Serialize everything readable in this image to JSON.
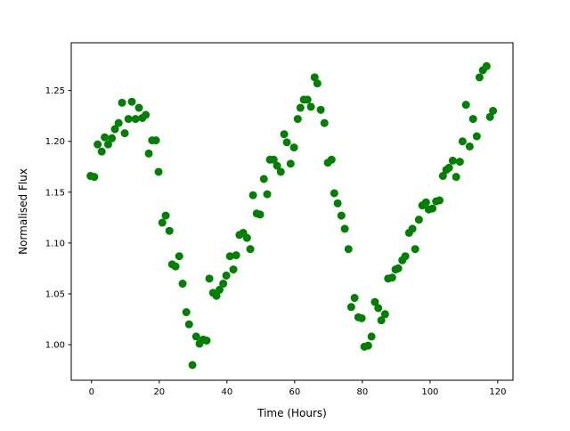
{
  "chart_data": {
    "type": "scatter",
    "title": "",
    "xlabel": "Time (Hours)",
    "ylabel": "Normalised Flux",
    "xlim": [
      -6,
      124.5
    ],
    "ylim": [
      0.965,
      1.297
    ],
    "xticks": [
      0,
      20,
      40,
      60,
      80,
      100,
      120
    ],
    "xtick_labels": [
      "0",
      "20",
      "40",
      "60",
      "80",
      "100",
      "120"
    ],
    "yticks": [
      1.0,
      1.05,
      1.1,
      1.15,
      1.2,
      1.25
    ],
    "ytick_labels": [
      "1.00",
      "1.05",
      "1.10",
      "1.15",
      "1.20",
      "1.25"
    ],
    "grid": false,
    "color": "#008000",
    "x": [
      -0.3,
      0.8,
      1.8,
      3.0,
      3.9,
      4.9,
      6.0,
      6.9,
      8.0,
      9.0,
      9.8,
      10.9,
      11.9,
      13.0,
      14.0,
      15.0,
      16.0,
      16.9,
      17.9,
      19.0,
      19.8,
      20.9,
      21.9,
      23.0,
      23.8,
      24.8,
      25.9,
      26.9,
      28.0,
      28.8,
      29.8,
      30.9,
      31.9,
      33.0,
      34.0,
      34.8,
      35.9,
      36.9,
      37.8,
      38.9,
      39.8,
      40.9,
      41.9,
      42.7,
      43.7,
      44.8,
      45.9,
      46.9,
      47.7,
      48.8,
      49.8,
      50.9,
      51.9,
      52.7,
      53.8,
      54.8,
      55.9,
      56.9,
      57.7,
      58.8,
      59.8,
      60.9,
      61.7,
      62.7,
      63.8,
      64.8,
      65.9,
      66.7,
      67.7,
      68.8,
      69.8,
      70.9,
      71.7,
      72.7,
      73.8,
      74.8,
      75.9,
      76.7,
      77.7,
      78.8,
      79.8,
      80.6,
      81.7,
      82.7,
      83.7,
      84.7,
      85.6,
      86.7,
      87.6,
      88.8,
      89.8,
      90.6,
      91.8,
      92.7,
      93.8,
      94.8,
      95.6,
      96.7,
      97.7,
      98.8,
      99.6,
      100.7,
      101.8,
      102.8,
      103.8,
      104.8,
      105.6,
      106.7,
      107.7,
      108.8,
      109.6,
      110.6,
      111.7,
      112.7,
      113.8,
      114.6,
      115.6,
      116.7,
      117.7,
      118.6
    ],
    "y": [
      1.166,
      1.165,
      1.197,
      1.19,
      1.204,
      1.197,
      1.203,
      1.212,
      1.218,
      1.238,
      1.208,
      1.222,
      1.239,
      1.222,
      1.233,
      1.223,
      1.226,
      1.188,
      1.201,
      1.201,
      1.17,
      1.12,
      1.127,
      1.112,
      1.079,
      1.077,
      1.087,
      1.06,
      1.032,
      1.02,
      0.98,
      1.008,
      1.001,
      1.005,
      1.004,
      1.065,
      1.051,
      1.048,
      1.054,
      1.06,
      1.068,
      1.087,
      1.074,
      1.088,
      1.108,
      1.11,
      1.105,
      1.094,
      1.147,
      1.129,
      1.128,
      1.163,
      1.148,
      1.182,
      1.182,
      1.176,
      1.17,
      1.207,
      1.199,
      1.178,
      1.194,
      1.222,
      1.233,
      1.241,
      1.241,
      1.234,
      1.263,
      1.257,
      1.231,
      1.218,
      1.179,
      1.182,
      1.149,
      1.139,
      1.127,
      1.114,
      1.094,
      1.037,
      1.046,
      1.027,
      1.026,
      0.998,
      0.999,
      1.008,
      1.042,
      1.036,
      1.024,
      1.03,
      1.065,
      1.066,
      1.074,
      1.075,
      1.083,
      1.087,
      1.11,
      1.114,
      1.094,
      1.123,
      1.137,
      1.14,
      1.133,
      1.134,
      1.141,
      1.142,
      1.166,
      1.172,
      1.174,
      1.181,
      1.165,
      1.18,
      1.2,
      1.236,
      1.195,
      1.222,
      1.205,
      1.263,
      1.27,
      1.274,
      1.224,
      1.23
    ]
  }
}
